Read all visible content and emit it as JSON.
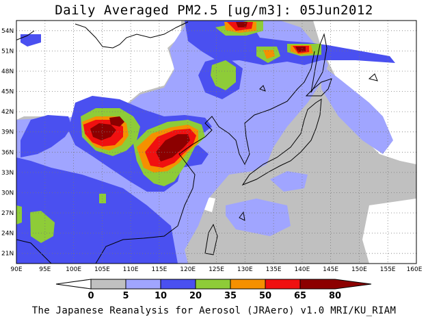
{
  "title": "Daily Averaged PM2.5 [ug/m3]: 05Jun2012",
  "footer": "The Japanese Reanalysis for Aerosol (JRAero) v1.0 MRI/KU_RIAM",
  "map": {
    "lon_range": [
      90,
      160
    ],
    "lat_range": [
      19.5,
      55.5
    ],
    "lon_ticks": [
      "90E",
      "95E",
      "100E",
      "105E",
      "110E",
      "115E",
      "120E",
      "125E",
      "130E",
      "135E",
      "140E",
      "145E",
      "150E",
      "155E",
      "160E"
    ],
    "lat_ticks": [
      "54N",
      "51N",
      "48N",
      "45N",
      "42N",
      "39N",
      "36N",
      "33N",
      "30N",
      "27N",
      "24N",
      "21N"
    ],
    "grid": true
  },
  "legend": {
    "labels": [
      "0",
      "5",
      "10",
      "20",
      "35",
      "50",
      "65",
      "80"
    ],
    "colors": [
      "#ffffff",
      "#c0c0c0",
      "#a0a5ff",
      "#4a50f0",
      "#8ecc38",
      "#f59000",
      "#f01010",
      "#8c0000"
    ]
  }
}
